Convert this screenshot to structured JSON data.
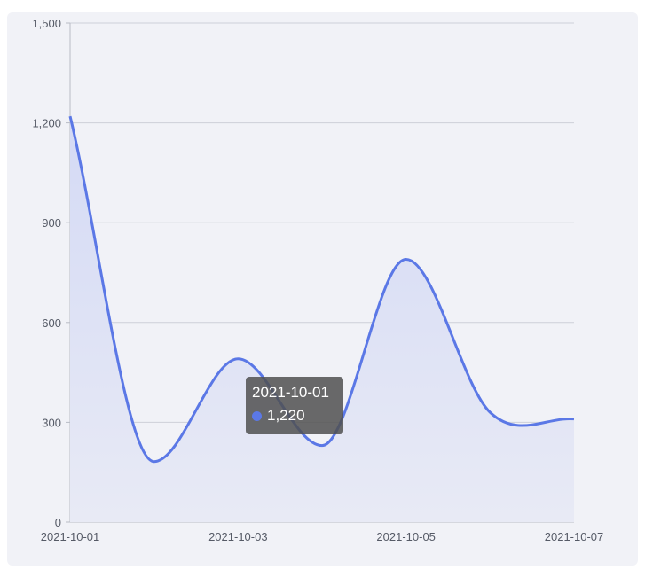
{
  "colors": {
    "series": "#5b78e6",
    "area_top": "#d4daf5",
    "area_bottom": "#e8eaf5",
    "grid": "#cdd0d8",
    "axis": "#b9bcc6",
    "panel": "#f1f2f7",
    "tooltip_bg": "#505050"
  },
  "tooltip": {
    "date": "2021-10-01",
    "value": "1,220"
  },
  "chart_data": {
    "type": "area",
    "smooth": true,
    "x": [
      "2021-10-01",
      "2021-10-02",
      "2021-10-03",
      "2021-10-04",
      "2021-10-05",
      "2021-10-06",
      "2021-10-07"
    ],
    "x_tick_labels": [
      "2021-10-01",
      "2021-10-03",
      "2021-10-05",
      "2021-10-07"
    ],
    "series": [
      {
        "values": [
          1220,
          182,
          491,
          230,
          790,
          330,
          310
        ]
      }
    ],
    "ylim": [
      0,
      1500
    ],
    "y_ticks": [
      0,
      300,
      600,
      900,
      1200,
      1500
    ],
    "y_tick_labels": [
      "0",
      "300",
      "600",
      "900",
      "1,200",
      "1,500"
    ],
    "grid": true,
    "legend": "none",
    "title": "",
    "xlabel": "",
    "ylabel": ""
  }
}
